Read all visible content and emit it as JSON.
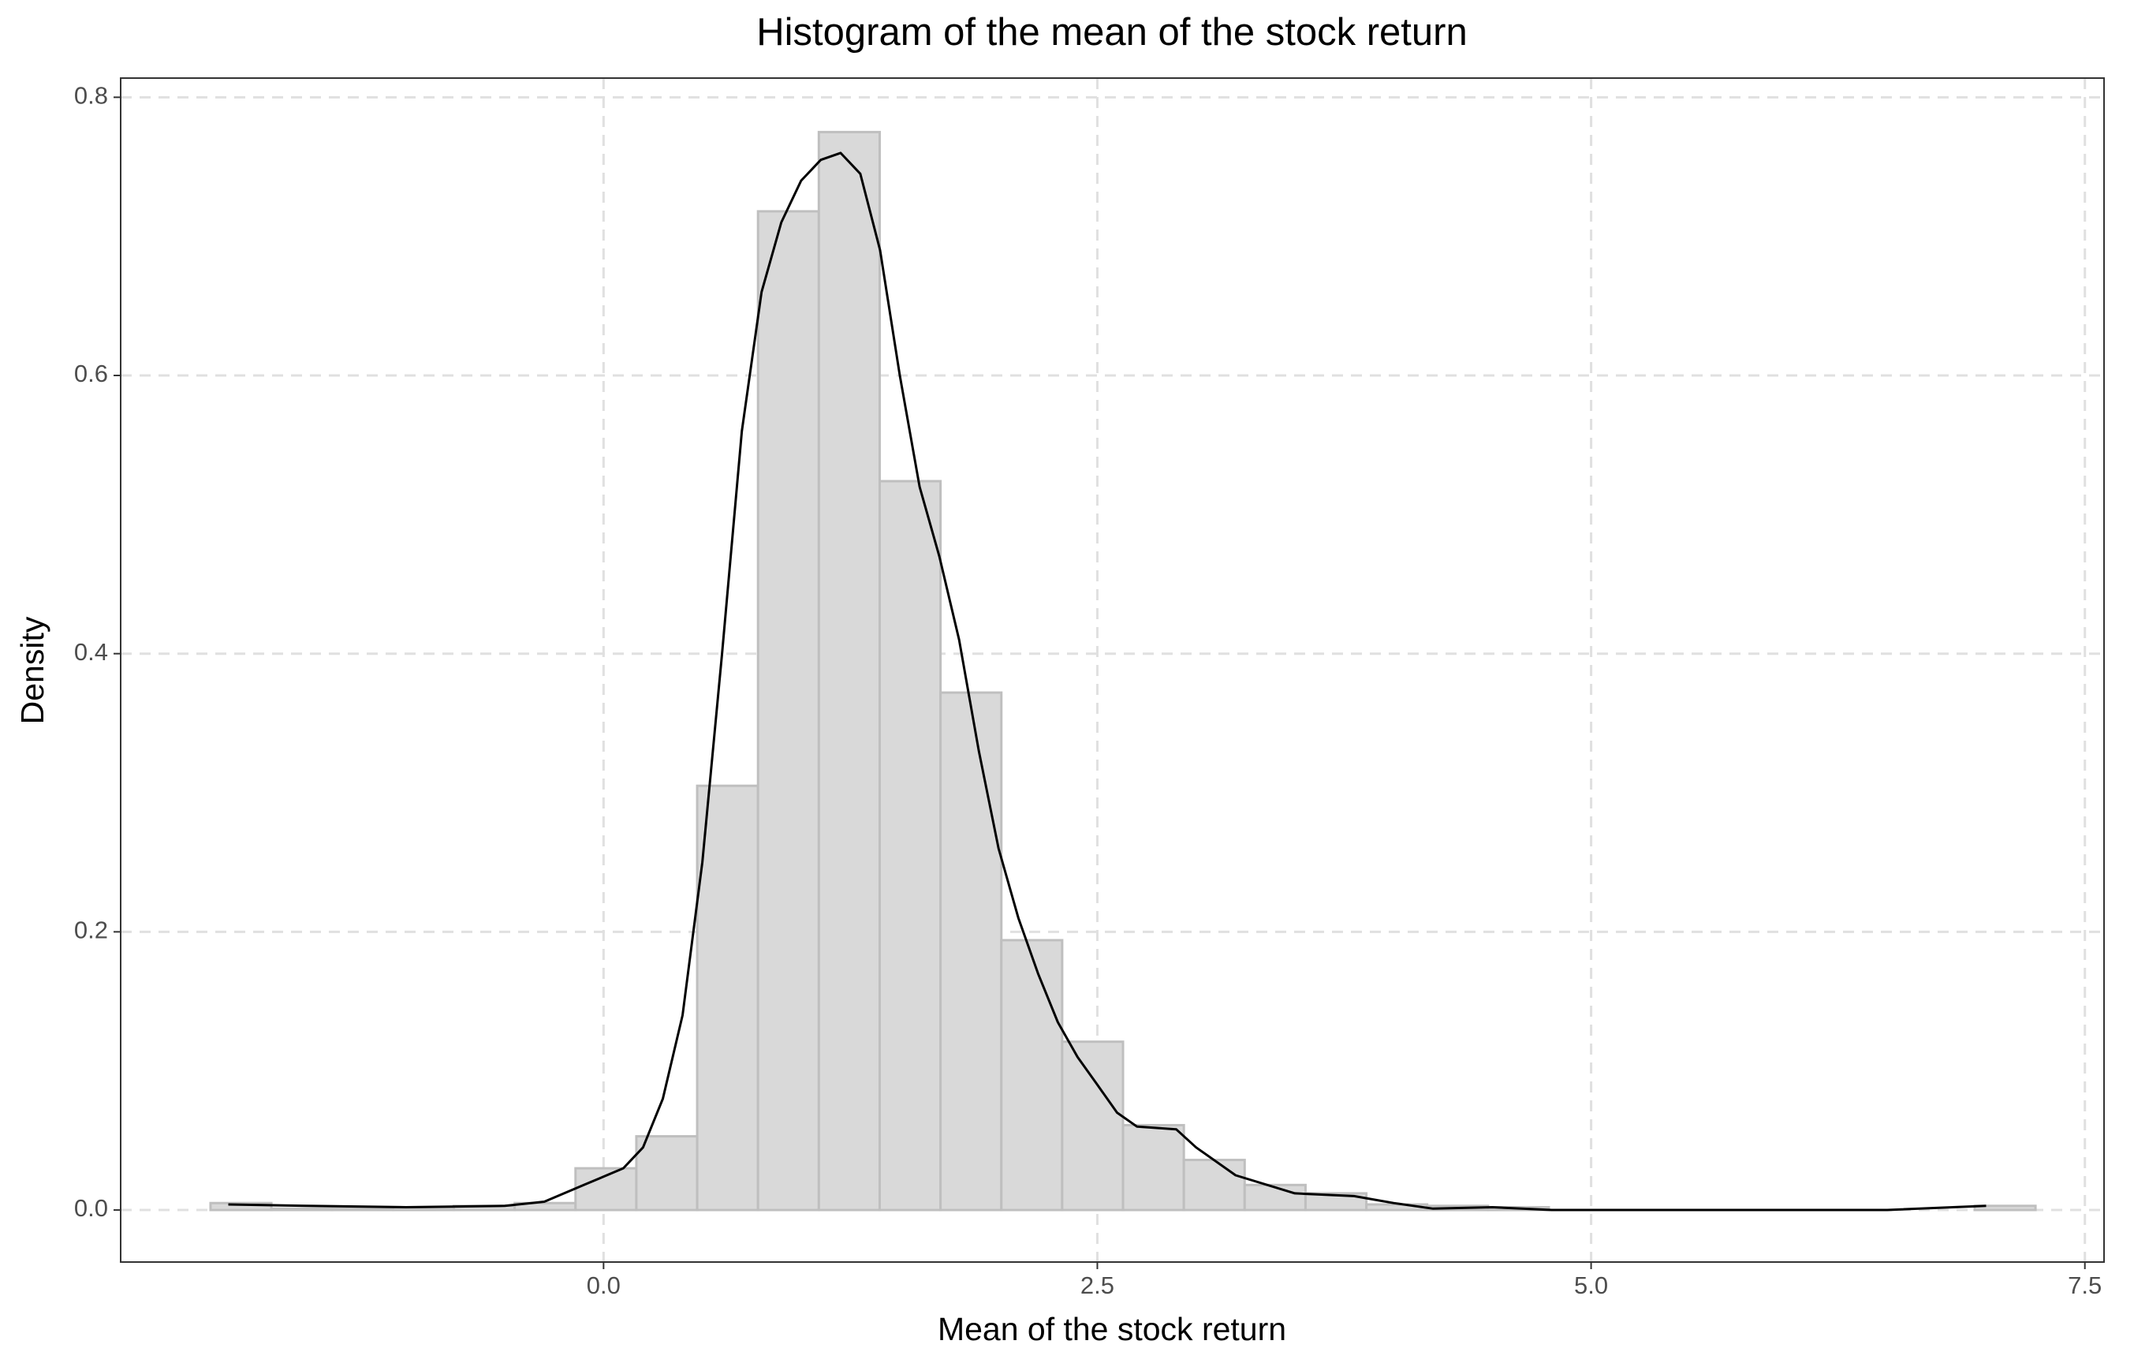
{
  "chart_data": {
    "type": "histogram",
    "title": "Histogram of the mean of the stock return",
    "x_label": "Mean of the stock return",
    "y_label": "Density",
    "bins": [
      -1.99,
      -1.682,
      -1.374,
      -1.066,
      -0.758,
      -0.45,
      -0.142,
      0.166,
      0.474,
      0.782,
      1.09,
      1.398,
      1.706,
      2.014,
      2.322,
      2.63,
      2.938,
      3.246,
      3.554,
      3.862,
      4.17,
      4.478,
      4.786,
      5.094,
      5.402,
      5.71,
      6.018,
      6.326,
      6.634,
      6.942,
      7.25
    ],
    "values": [
      0.005,
      0.001,
      0.001,
      0.002,
      0.003,
      0.005,
      0.03,
      0.053,
      0.305,
      0.718,
      0.775,
      0.524,
      0.372,
      0.194,
      0.121,
      0.061,
      0.036,
      0.018,
      0.012,
      0.004,
      0.003,
      0.002,
      0,
      0,
      0,
      0,
      0,
      0,
      0,
      0.003
    ],
    "color": "#d9d9d9",
    "edge_color": "#bfbfbf",
    "density": {
      "color": "#000000",
      "x": [
        -1.9,
        -1.5,
        -1.0,
        -0.5,
        -0.3,
        -0.1,
        0.1,
        0.2,
        0.3,
        0.4,
        0.5,
        0.6,
        0.7,
        0.8,
        0.9,
        1.0,
        1.1,
        1.2,
        1.3,
        1.4,
        1.5,
        1.6,
        1.7,
        1.8,
        1.9,
        2.0,
        2.1,
        2.2,
        2.3,
        2.4,
        2.5,
        2.6,
        2.7,
        2.9,
        3.0,
        3.2,
        3.5,
        3.8,
        4.0,
        4.2,
        4.5,
        4.8,
        6.5,
        7.0
      ],
      "values": [
        0.004,
        0.003,
        0.002,
        0.003,
        0.006,
        0.018,
        0.03,
        0.045,
        0.08,
        0.14,
        0.25,
        0.4,
        0.56,
        0.66,
        0.71,
        0.74,
        0.755,
        0.76,
        0.745,
        0.69,
        0.6,
        0.52,
        0.47,
        0.41,
        0.33,
        0.26,
        0.21,
        0.17,
        0.135,
        0.11,
        0.09,
        0.07,
        0.06,
        0.058,
        0.045,
        0.025,
        0.012,
        0.01,
        0.005,
        0.001,
        0.002,
        0.0,
        0.0,
        0.003
      ]
    },
    "xlim": [
      -2.445,
      7.597
    ],
    "ylim": [
      -0.0374,
      0.8138
    ],
    "xticks": [
      {
        "value": 0,
        "label": "0.0"
      },
      {
        "value": 2.5,
        "label": "2.5"
      },
      {
        "value": 5,
        "label": "5.0"
      },
      {
        "value": 7.5,
        "label": "7.5"
      }
    ],
    "yticks": [
      {
        "value": 0,
        "label": "0.0"
      },
      {
        "value": 0.2,
        "label": "0.2"
      },
      {
        "value": 0.4,
        "label": "0.4"
      },
      {
        "value": 0.6,
        "label": "0.6"
      },
      {
        "value": 0.8,
        "label": "0.8"
      }
    ],
    "grid": true
  }
}
